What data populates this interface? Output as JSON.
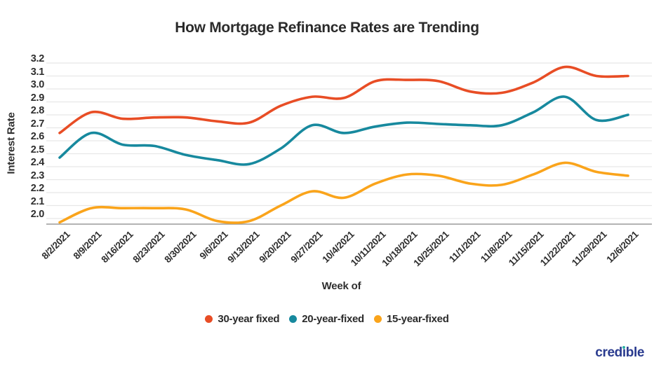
{
  "chart_data": {
    "type": "line",
    "title": "How Mortgage Refinance Rates are Trending",
    "xlabel": "Week of",
    "ylabel": "Interest Rate",
    "ylim": [
      2.0,
      3.2
    ],
    "ytick_step": 0.1,
    "grid": true,
    "legend_position": "bottom",
    "categories": [
      "8/2/2021",
      "8/9/2021",
      "8/16/2021",
      "8/23/2021",
      "8/30/2021",
      "9/6/2021",
      "9/13/2021",
      "9/20/2021",
      "9/27/2021",
      "10/4/2021",
      "10/11/2021",
      "10/18/2021",
      "10/25/2021",
      "11/1/2021",
      "11/8/2021",
      "11/15/2021",
      "11/22/2021",
      "11/29/2021",
      "12/6/2021"
    ],
    "series": [
      {
        "name": "30-year fixed",
        "color": "#E84D25",
        "values": [
          2.66,
          2.82,
          2.77,
          2.78,
          2.78,
          2.75,
          2.74,
          2.87,
          2.94,
          2.93,
          3.06,
          3.07,
          3.06,
          2.98,
          2.97,
          3.05,
          3.17,
          3.1,
          3.1
        ]
      },
      {
        "name": "20-year-fixed",
        "color": "#17899E",
        "values": [
          2.47,
          2.66,
          2.57,
          2.56,
          2.49,
          2.45,
          2.42,
          2.54,
          2.72,
          2.66,
          2.71,
          2.74,
          2.73,
          2.72,
          2.72,
          2.82,
          2.94,
          2.76,
          2.8
        ]
      },
      {
        "name": "15-year-fixed",
        "color": "#FAA41B",
        "values": [
          1.97,
          2.08,
          2.08,
          2.08,
          2.07,
          1.98,
          1.98,
          2.1,
          2.21,
          2.16,
          2.27,
          2.34,
          2.33,
          2.27,
          2.26,
          2.34,
          2.43,
          2.36,
          2.33
        ]
      }
    ],
    "colors": {
      "gridline": "#e7e7e7",
      "axis_line": "#9a9a9a",
      "text": "#2e2e2e"
    }
  },
  "branding": {
    "logo_text": "credible",
    "logo_color": "#2a3b8f",
    "logo_dot_color": "#2bb1a3"
  }
}
